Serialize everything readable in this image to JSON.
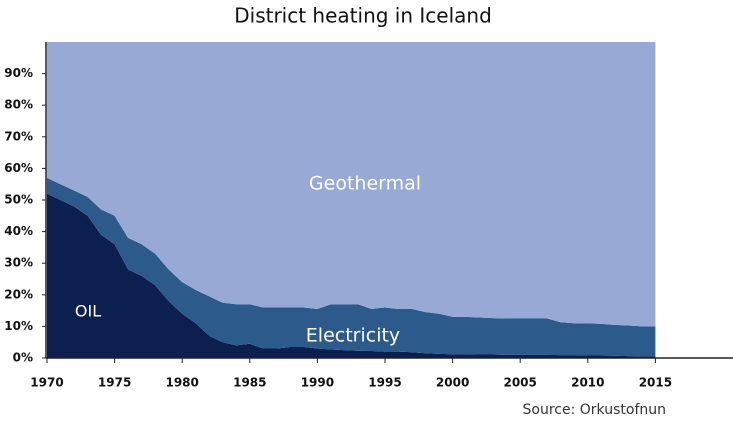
{
  "chart_data": {
    "type": "stacked_area",
    "title": "District heating in Iceland",
    "source": "Source: Orkustofnun",
    "x": [
      1970,
      1971,
      1972,
      1973,
      1974,
      1975,
      1976,
      1977,
      1978,
      1979,
      1980,
      1981,
      1982,
      1983,
      1984,
      1985,
      1986,
      1987,
      1988,
      1989,
      1990,
      1991,
      1992,
      1993,
      1994,
      1995,
      1996,
      1997,
      1998,
      1999,
      2000,
      2001,
      2002,
      2003,
      2004,
      2005,
      2006,
      2007,
      2008,
      2009,
      2010,
      2011,
      2012,
      2013,
      2014,
      2015
    ],
    "series": [
      {
        "name": "OIL",
        "color": "#0c1f4e",
        "values": [
          52,
          50,
          48,
          45,
          39,
          36,
          28,
          26,
          23,
          18,
          14,
          11,
          7,
          5,
          4,
          4.5,
          3,
          3,
          3.5,
          3.5,
          3,
          2.7,
          2.5,
          2.3,
          2.2,
          2,
          2,
          1.8,
          1.5,
          1.3,
          1.2,
          1.2,
          1.1,
          1.1,
          1,
          1,
          1,
          1,
          0.9,
          0.9,
          0.8,
          0.8,
          0.7,
          0.6,
          0.5,
          0.5
        ]
      },
      {
        "name": "Electricity",
        "color": "#2c5b8b",
        "values": [
          5,
          5,
          5,
          6,
          8,
          9,
          10,
          10,
          10,
          10,
          10,
          10.5,
          12.5,
          12.5,
          13,
          12.5,
          13,
          13,
          12.5,
          12.5,
          12.5,
          14.3,
          14.5,
          14.7,
          13.3,
          14,
          13.5,
          13.7,
          13,
          12.7,
          11.8,
          11.8,
          11.7,
          11.5,
          11.5,
          11.5,
          11.5,
          11.5,
          10.4,
          10.1,
          10.2,
          10,
          9.8,
          9.7,
          9.5,
          9.5
        ]
      },
      {
        "name": "Geothermal",
        "color": "#98a9d5",
        "values": [
          43,
          45,
          47,
          49,
          53,
          55,
          62,
          64,
          67,
          72,
          76,
          78.5,
          80.5,
          82.5,
          83,
          83,
          84,
          84,
          84,
          84,
          84.5,
          83,
          83,
          83,
          84.5,
          84,
          84.5,
          84.5,
          85.5,
          86,
          87,
          87,
          87.2,
          87.4,
          87.5,
          87.5,
          87.5,
          87.5,
          88.7,
          89,
          89,
          89.2,
          89.5,
          89.7,
          90,
          90
        ]
      }
    ],
    "xlim": [
      1970,
      2020
    ],
    "xticks": [
      1970,
      1975,
      1980,
      1985,
      1990,
      1995,
      2000,
      2005,
      2010,
      2015
    ],
    "ylim": [
      0,
      100
    ],
    "yticks": [
      {
        "value": 0,
        "label": "0%"
      },
      {
        "value": 10,
        "label": "10%"
      },
      {
        "value": 20,
        "label": "20%"
      },
      {
        "value": 30,
        "label": "30%"
      },
      {
        "value": 40,
        "label": "40%"
      },
      {
        "value": 50,
        "label": "50%"
      },
      {
        "value": 60,
        "label": "60%"
      },
      {
        "value": 70,
        "label": "70%"
      },
      {
        "value": 80,
        "label": "80%"
      },
      {
        "value": 90,
        "label": "90%"
      }
    ]
  }
}
